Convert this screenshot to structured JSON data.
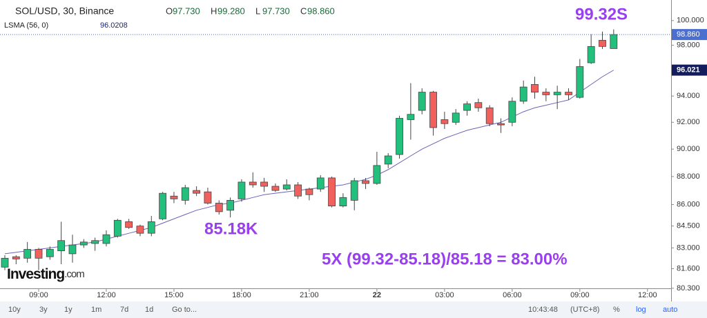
{
  "chart_data": {
    "type": "candlestick",
    "title": "SOL/USD, 30, Binance",
    "ohlc_header": [
      {
        "label": "O",
        "value": "97.730"
      },
      {
        "label": "H",
        "value": "99.280"
      },
      {
        "label": "L",
        "value": "97.730"
      },
      {
        "label": "C",
        "value": "98.860"
      }
    ],
    "indicator": {
      "name": "LSMA (56, 0)",
      "value": "96.0208"
    },
    "last_price_label": "98.860",
    "indicator_price_label": "96.021",
    "annotations": [
      "99.32S",
      "85.18K",
      "5X (99.32-85.18)/85.18 = 83.00%"
    ],
    "logo": {
      "brand": "Investing",
      "suffix": ".com"
    },
    "toolbar": {
      "ranges": [
        "10y",
        "3y",
        "1y",
        "1m",
        "7d",
        "1d",
        "Go to..."
      ],
      "clock": "10:43:48",
      "timezone": "(UTC+8)",
      "options": [
        "%",
        "log",
        "auto"
      ]
    },
    "log_scale": true,
    "grid": false,
    "up_color": "#22c07c",
    "down_color": "#f0605d",
    "line_color": "#6b62b8",
    "ylim": [
      79.75,
      101.7
    ],
    "yticks": [
      {
        "value": 80.3,
        "label": "80.300"
      },
      {
        "value": 81.6,
        "label": "81.600"
      },
      {
        "value": 83,
        "label": "83.000"
      },
      {
        "value": 84.5,
        "label": "84.500"
      },
      {
        "value": 86,
        "label": "86.000"
      },
      {
        "value": 88,
        "label": "88.000"
      },
      {
        "value": 90,
        "label": "90.000"
      },
      {
        "value": 92,
        "label": "92.000"
      },
      {
        "value": 94,
        "label": "94.000"
      },
      {
        "value": 98,
        "label": "98.000"
      },
      {
        "value": 100,
        "label": "100.000"
      }
    ],
    "categories": [
      null,
      null,
      null,
      "09:00",
      null,
      null,
      null,
      null,
      null,
      "12:00",
      null,
      null,
      null,
      null,
      null,
      "15:00",
      null,
      null,
      null,
      null,
      null,
      "18:00",
      null,
      null,
      null,
      null,
      null,
      "21:00",
      null,
      null,
      null,
      null,
      null,
      "22",
      null,
      null,
      null,
      null,
      null,
      "03:00",
      null,
      null,
      null,
      null,
      null,
      "06:00",
      null,
      null,
      null,
      null,
      null,
      "09:00",
      null,
      null,
      null,
      null,
      null,
      "12:00"
    ],
    "open": [
      81.7,
      82.4,
      82.3,
      82.9,
      82.4,
      82.8,
      82.6,
      83.2,
      83.3,
      83.3,
      83.8,
      84.8,
      84.5,
      84.0,
      85.0,
      86.6,
      86.3,
      87.0,
      86.9,
      86.1,
      85.6,
      86.4,
      87.6,
      87.6,
      87.3,
      87.1,
      87.4,
      87.1,
      87.1,
      87.9,
      85.9,
      86.3,
      87.7,
      87.5,
      88.9,
      89.6,
      92.2,
      92.9,
      94.3,
      92.2,
      92.0,
      92.9,
      93.5,
      93.1,
      91.9,
      92.0,
      93.6,
      94.9,
      94.3,
      94.1,
      94.3,
      93.9,
      96.6,
      98.4,
      97.73,
      null,
      null,
      null
    ],
    "high": [
      82.5,
      82.5,
      83.4,
      83.0,
      83.1,
      84.8,
      83.9,
      83.6,
      83.7,
      84.2,
      85.0,
      85.0,
      84.6,
      85.2,
      86.9,
      86.9,
      87.4,
      87.3,
      87.2,
      86.3,
      86.5,
      87.8,
      88.3,
      87.9,
      87.5,
      87.8,
      87.6,
      87.2,
      88.1,
      88.0,
      86.8,
      87.9,
      87.9,
      89.8,
      89.7,
      92.5,
      95.0,
      94.6,
      94.4,
      92.8,
      93.0,
      93.6,
      93.8,
      93.3,
      92.3,
      93.9,
      95.2,
      95.5,
      94.6,
      94.8,
      94.6,
      96.9,
      98.9,
      99.1,
      99.28,
      null,
      null,
      null
    ],
    "low": [
      81.5,
      81.9,
      82.0,
      81.5,
      82.2,
      81.9,
      82.0,
      83.0,
      82.8,
      83.1,
      83.7,
      84.3,
      83.8,
      83.8,
      84.9,
      86.1,
      86.0,
      86.6,
      86.0,
      85.3,
      85.1,
      86.2,
      87.2,
      86.9,
      86.9,
      87.0,
      86.4,
      86.3,
      86.9,
      85.8,
      85.8,
      85.6,
      87.1,
      87.4,
      88.6,
      89.3,
      90.7,
      92.6,
      91.0,
      91.5,
      91.8,
      92.5,
      92.8,
      91.7,
      91.2,
      91.7,
      93.4,
      93.8,
      93.6,
      93.0,
      93.7,
      93.8,
      96.5,
      97.7,
      97.73,
      null,
      null,
      null
    ],
    "close": [
      82.3,
      82.25,
      82.9,
      82.3,
      82.9,
      83.5,
      83.2,
      83.4,
      83.5,
      83.9,
      84.9,
      84.4,
      84.0,
      84.8,
      86.8,
      86.4,
      87.2,
      86.8,
      86.1,
      85.5,
      86.3,
      87.6,
      87.4,
      87.3,
      87.0,
      87.4,
      86.6,
      86.7,
      87.9,
      85.9,
      86.5,
      87.7,
      87.5,
      88.8,
      89.5,
      92.3,
      92.6,
      94.3,
      91.6,
      91.9,
      92.7,
      93.4,
      93.1,
      91.9,
      91.8,
      93.6,
      94.7,
      94.3,
      94.1,
      94.3,
      94.1,
      96.3,
      97.9,
      97.9,
      98.86,
      null,
      null,
      null
    ],
    "lsma": [
      82.6,
      82.7,
      82.8,
      82.9,
      83.0,
      83.1,
      83.2,
      83.3,
      83.4,
      83.6,
      83.8,
      84.0,
      84.2,
      84.4,
      84.7,
      85.0,
      85.3,
      85.6,
      85.8,
      86.0,
      86.1,
      86.3,
      86.5,
      86.7,
      86.8,
      86.9,
      87.0,
      87.1,
      87.2,
      87.3,
      87.4,
      87.6,
      87.8,
      88.1,
      88.5,
      89.0,
      89.5,
      90.0,
      90.4,
      90.8,
      91.1,
      91.4,
      91.6,
      91.8,
      92.0,
      92.4,
      92.8,
      93.1,
      93.3,
      93.5,
      93.7,
      94.3,
      94.9,
      95.5,
      96.0208,
      null,
      null,
      null
    ]
  }
}
